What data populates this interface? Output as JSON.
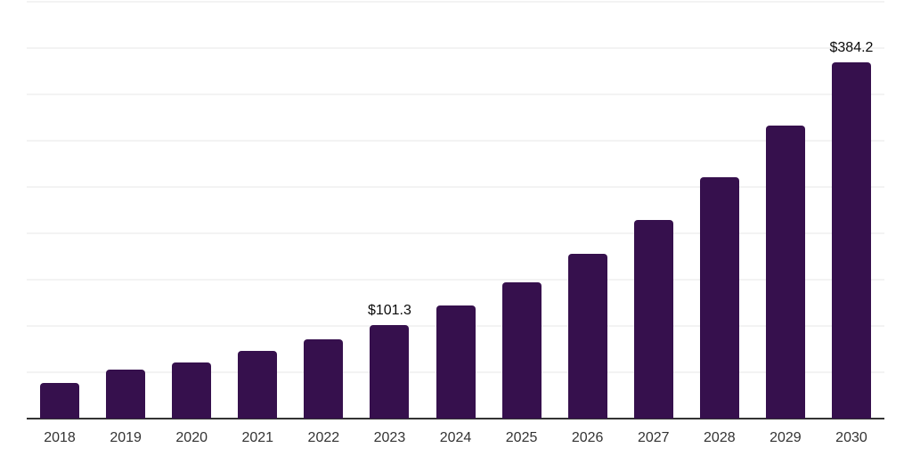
{
  "chart_data": {
    "type": "bar",
    "title": "",
    "categories": [
      "2018",
      "2019",
      "2020",
      "2021",
      "2022",
      "2023",
      "2024",
      "2025",
      "2026",
      "2027",
      "2028",
      "2029",
      "2030"
    ],
    "values": [
      38.3,
      53.0,
      60.5,
      73.4,
      85.8,
      101.3,
      122.4,
      147.5,
      177.8,
      214.8,
      260.2,
      316.0,
      384.2
    ],
    "data_labels": [
      "",
      "",
      "",
      "",
      "",
      "$101.3",
      "",
      "",
      "",
      "",
      "",
      "",
      "$384.2"
    ],
    "xlabel": "",
    "ylabel": "",
    "ylim": [
      0,
      450
    ],
    "gridline_step": 50,
    "grid": true,
    "legend_position": "none",
    "bar_color": "#36104d",
    "axis_color": "#333333",
    "gridline_color": "#f3f3f3",
    "value_label_color": "#0a0a0a",
    "tick_label_color": "#333333",
    "background_color": "#ffffff"
  }
}
